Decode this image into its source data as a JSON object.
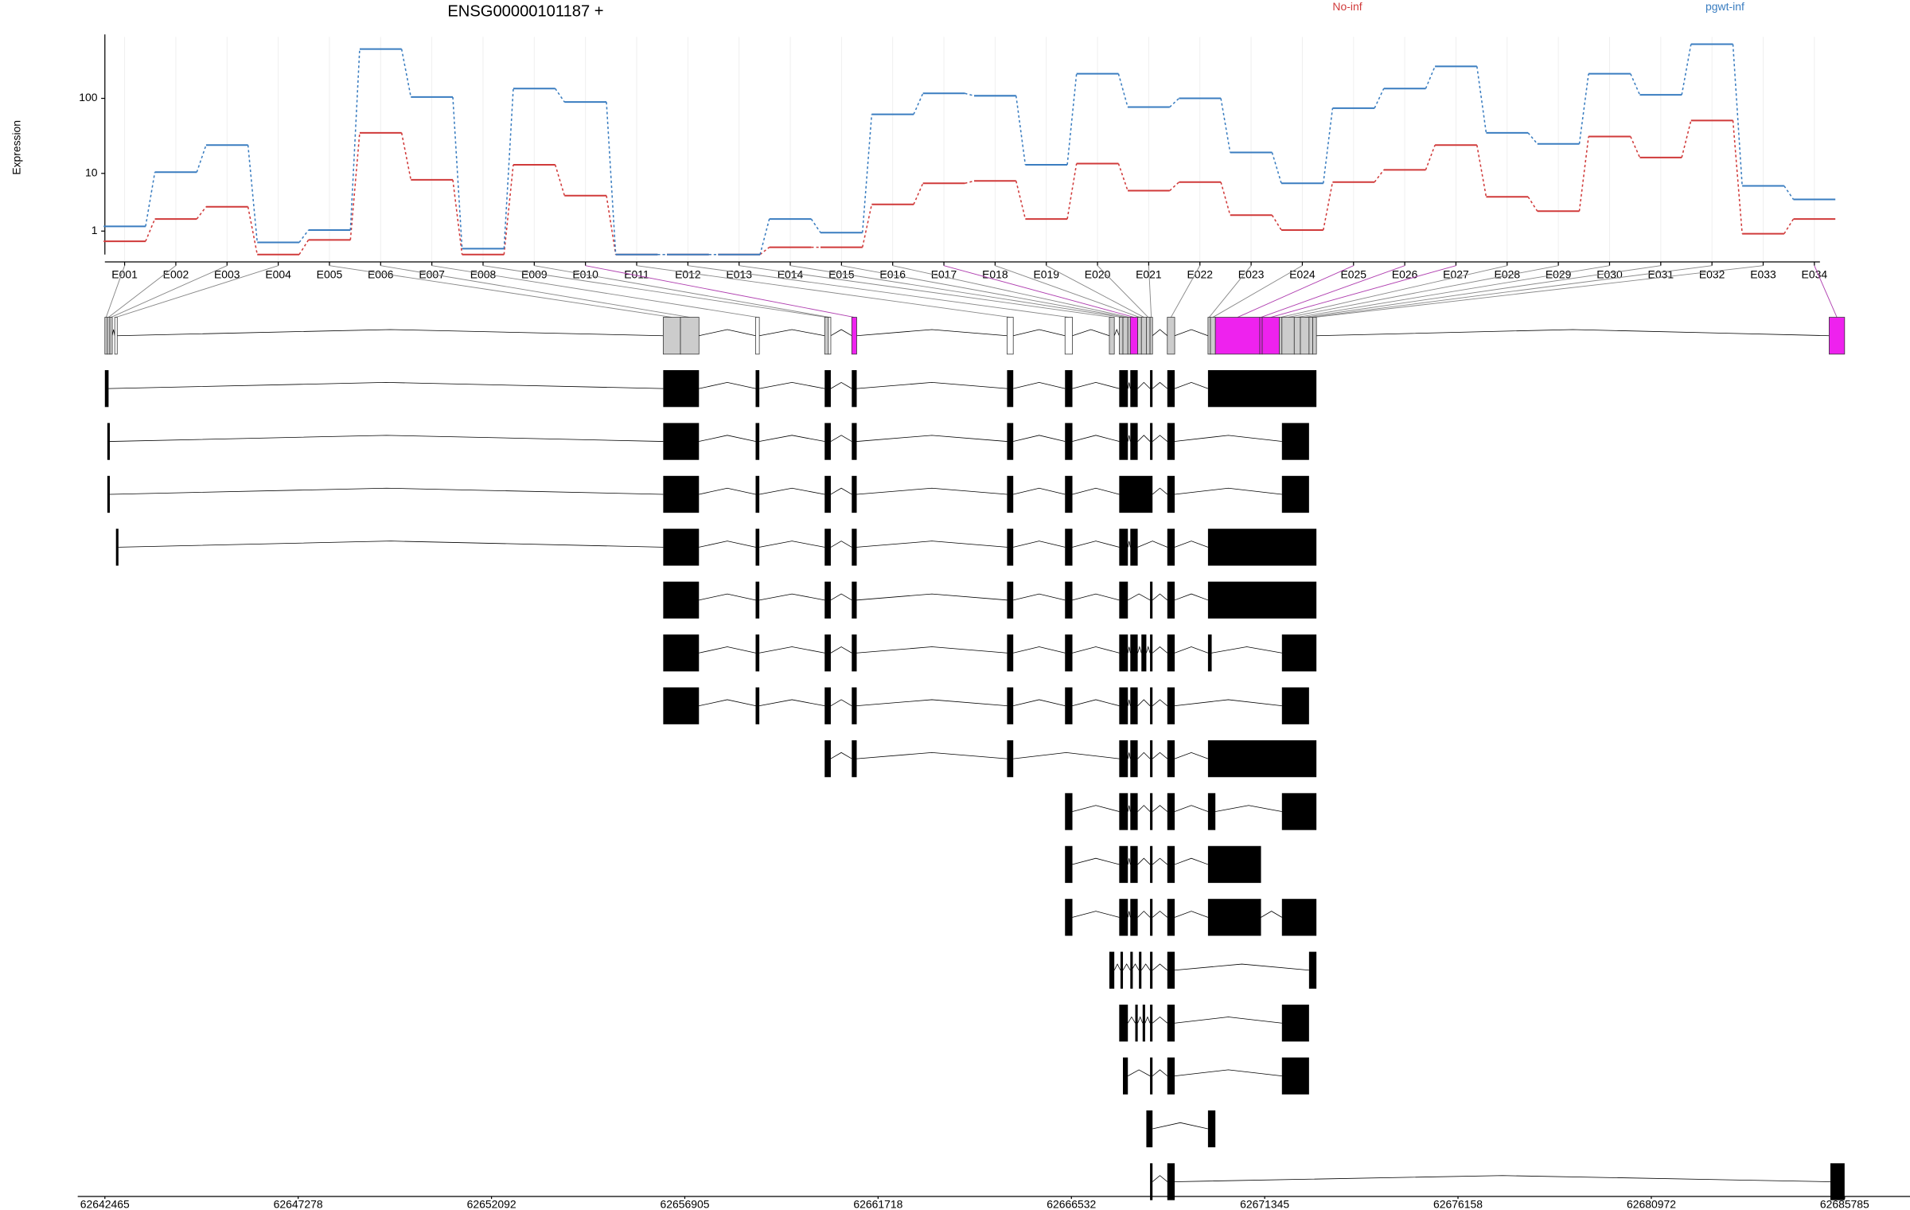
{
  "chart_data": {
    "type": "line",
    "title": "ENSG00000101187 +",
    "y_label": "Expression",
    "yscale": "log1p",
    "ylim": [
      0,
      620
    ],
    "yticks": [
      1,
      10,
      100
    ],
    "grid": true,
    "categories": [
      "E001",
      "E002",
      "E003",
      "E004",
      "E005",
      "E006",
      "E007",
      "E008",
      "E009",
      "E010",
      "E011",
      "E012",
      "E013",
      "E014",
      "E015",
      "E016",
      "E017",
      "E018",
      "E019",
      "E020",
      "E021",
      "E022",
      "E023",
      "E024",
      "E025",
      "E026",
      "E027",
      "E028",
      "E029",
      "E030",
      "E031",
      "E032",
      "E033",
      "E034"
    ],
    "series": [
      {
        "name": "No-inf",
        "color": "#d03a3a",
        "values": [
          0.48,
          1.86,
          3.1,
          0,
          0.54,
          35.5,
          8.1,
          0,
          13.2,
          4.7,
          0,
          0,
          0,
          0.24,
          0.24,
          3.4,
          7.2,
          7.8,
          1.86,
          13.7,
          5.6,
          7.5,
          2.2,
          1.06,
          7.5,
          11.2,
          24.4,
          4.5,
          2.6,
          31.7,
          16.6,
          51.5,
          0.85,
          1.86
        ]
      },
      {
        "name": "pgwt-inf",
        "color": "#3a7dc0",
        "values": [
          1.3,
          10.4,
          24.4,
          0.43,
          1.06,
          432,
          104,
          0.19,
          134,
          89.6,
          0,
          0,
          0,
          1.86,
          0.91,
          62,
          116,
          108,
          13.2,
          208,
          77,
          100,
          19.4,
          7.2,
          74.5,
          134,
          259,
          35.5,
          25.3,
          208,
          111,
          499,
          6.6,
          4.1
        ]
      }
    ],
    "xlim": [
      62642465,
      62685785
    ],
    "xticks": [
      62642465,
      62647278,
      62652092,
      62656905,
      62661718,
      62666532,
      62671345,
      62676158,
      62680972,
      62685785
    ],
    "exon_bins": [
      {
        "start": 62642465,
        "end": 62642526,
        "color": "#cccccc"
      },
      {
        "start": 62642526,
        "end": 62642588,
        "color": "#cccccc"
      },
      {
        "start": 62642588,
        "end": 62642649,
        "color": "#cccccc"
      },
      {
        "start": 62642711,
        "end": 62642772,
        "color": "#ffffff"
      },
      {
        "start": 62656368,
        "end": 62656797,
        "color": "#cccccc"
      },
      {
        "start": 62656797,
        "end": 62657258,
        "color": "#cccccc"
      },
      {
        "start": 62658669,
        "end": 62658761,
        "color": "#ffffff"
      },
      {
        "start": 62660388,
        "end": 62660480,
        "color": "#cccccc"
      },
      {
        "start": 62660480,
        "end": 62660541,
        "color": "#ffffff"
      },
      {
        "start": 62661063,
        "end": 62661186,
        "color": "#ee22ee"
      },
      {
        "start": 62664930,
        "end": 62665084,
        "color": "#ffffff"
      },
      {
        "start": 62666373,
        "end": 62666557,
        "color": "#ffffff"
      },
      {
        "start": 62667477,
        "end": 62667600,
        "color": "#cccccc"
      },
      {
        "start": 62667723,
        "end": 62667815,
        "color": "#cccccc"
      },
      {
        "start": 62667815,
        "end": 62667938,
        "color": "#cccccc"
      },
      {
        "start": 62667938,
        "end": 62667999,
        "color": "#cccccc"
      },
      {
        "start": 62667999,
        "end": 62668183,
        "color": "#ee22ee"
      },
      {
        "start": 62668183,
        "end": 62668275,
        "color": "#cccccc"
      },
      {
        "start": 62668275,
        "end": 62668398,
        "color": "#cccccc"
      },
      {
        "start": 62668398,
        "end": 62668490,
        "color": "#cccccc"
      },
      {
        "start": 62668490,
        "end": 62668552,
        "color": "#cccccc"
      },
      {
        "start": 62668920,
        "end": 62669104,
        "color": "#cccccc"
      },
      {
        "start": 62669933,
        "end": 62669994,
        "color": "#cccccc"
      },
      {
        "start": 62669994,
        "end": 62670117,
        "color": "#cccccc"
      },
      {
        "start": 62670117,
        "end": 62671222,
        "color": "#ee22ee"
      },
      {
        "start": 62671222,
        "end": 62671283,
        "color": "#ee22ee"
      },
      {
        "start": 62671283,
        "end": 62671713,
        "color": "#ee22ee"
      },
      {
        "start": 62671713,
        "end": 62671774,
        "color": "#cccccc"
      },
      {
        "start": 62671774,
        "end": 62672081,
        "color": "#cccccc"
      },
      {
        "start": 62672081,
        "end": 62672234,
        "color": "#cccccc"
      },
      {
        "start": 62672234,
        "end": 62672449,
        "color": "#cccccc"
      },
      {
        "start": 62672449,
        "end": 62672541,
        "color": "#cccccc"
      },
      {
        "start": 62672541,
        "end": 62672633,
        "color": "#cccccc"
      },
      {
        "start": 62685400,
        "end": 62685785,
        "color": "#ee22ee"
      }
    ],
    "transcripts": [
      [
        [
          62642465,
          62642557
        ],
        [
          62656368,
          62657258
        ],
        [
          62658669,
          62658761
        ],
        [
          62660388,
          62660541
        ],
        [
          62661063,
          62661186
        ],
        [
          62664930,
          62665084
        ],
        [
          62666373,
          62666557
        ],
        [
          62667723,
          62667938
        ],
        [
          62667999,
          62668183
        ],
        [
          62668490,
          62668552
        ],
        [
          62668920,
          62669104
        ],
        [
          62669933,
          62672633
        ]
      ],
      [
        [
          62642526,
          62642588
        ],
        [
          62656368,
          62657258
        ],
        [
          62658669,
          62658761
        ],
        [
          62660388,
          62660541
        ],
        [
          62661063,
          62661186
        ],
        [
          62664930,
          62665084
        ],
        [
          62666373,
          62666557
        ],
        [
          62667723,
          62667938
        ],
        [
          62667999,
          62668183
        ],
        [
          62668490,
          62668552
        ],
        [
          62668920,
          62669104
        ],
        [
          62671774,
          62672449
        ]
      ],
      [
        [
          62642526,
          62642588
        ],
        [
          62656368,
          62657258
        ],
        [
          62658669,
          62658761
        ],
        [
          62660388,
          62660541
        ],
        [
          62661063,
          62661186
        ],
        [
          62664930,
          62665084
        ],
        [
          62666373,
          62666557
        ],
        [
          62667723,
          62668552
        ],
        [
          62668920,
          62669104
        ],
        [
          62671774,
          62672449
        ]
      ],
      [
        [
          62642741,
          62642803
        ],
        [
          62656368,
          62657258
        ],
        [
          62658669,
          62658761
        ],
        [
          62660388,
          62660541
        ],
        [
          62661063,
          62661186
        ],
        [
          62664930,
          62665084
        ],
        [
          62666373,
          62666557
        ],
        [
          62667723,
          62667938
        ],
        [
          62667999,
          62668183
        ],
        [
          62668920,
          62669104
        ],
        [
          62669933,
          62672633
        ]
      ],
      [
        [
          62656368,
          62657258
        ],
        [
          62658669,
          62658761
        ],
        [
          62660388,
          62660541
        ],
        [
          62661063,
          62661186
        ],
        [
          62664930,
          62665084
        ],
        [
          62666373,
          62666557
        ],
        [
          62667723,
          62667938
        ],
        [
          62668490,
          62668552
        ],
        [
          62668920,
          62669104
        ],
        [
          62669933,
          62672633
        ]
      ],
      [
        [
          62656368,
          62657258
        ],
        [
          62658669,
          62658761
        ],
        [
          62660388,
          62660541
        ],
        [
          62661063,
          62661186
        ],
        [
          62664930,
          62665084
        ],
        [
          62666373,
          62666557
        ],
        [
          62667723,
          62667938
        ],
        [
          62667999,
          62668183
        ],
        [
          62668275,
          62668398
        ],
        [
          62668490,
          62668552
        ],
        [
          62668920,
          62669104
        ],
        [
          62669933,
          62670025
        ],
        [
          62671774,
          62672633
        ]
      ],
      [
        [
          62656368,
          62657258
        ],
        [
          62658669,
          62658761
        ],
        [
          62660388,
          62660541
        ],
        [
          62661063,
          62661186
        ],
        [
          62664930,
          62665084
        ],
        [
          62666373,
          62666557
        ],
        [
          62667723,
          62667938
        ],
        [
          62667999,
          62668183
        ],
        [
          62668490,
          62668552
        ],
        [
          62668920,
          62669104
        ],
        [
          62671774,
          62672449
        ]
      ],
      [
        [
          62660388,
          62660541
        ],
        [
          62661063,
          62661186
        ],
        [
          62664930,
          62665084
        ],
        [
          62667723,
          62667938
        ],
        [
          62667999,
          62668183
        ],
        [
          62668490,
          62668552
        ],
        [
          62668920,
          62669104
        ],
        [
          62669933,
          62672633
        ]
      ],
      [
        [
          62666373,
          62666557
        ],
        [
          62667723,
          62667938
        ],
        [
          62667999,
          62668183
        ],
        [
          62668490,
          62668552
        ],
        [
          62668920,
          62669104
        ],
        [
          62669933,
          62670117
        ],
        [
          62671774,
          62672633
        ]
      ],
      [
        [
          62666373,
          62666557
        ],
        [
          62667723,
          62667938
        ],
        [
          62667999,
          62668183
        ],
        [
          62668490,
          62668552
        ],
        [
          62668920,
          62669104
        ],
        [
          62669933,
          62671253
        ]
      ],
      [
        [
          62666373,
          62666557
        ],
        [
          62667723,
          62667938
        ],
        [
          62667999,
          62668183
        ],
        [
          62668490,
          62668552
        ],
        [
          62668920,
          62669104
        ],
        [
          62669933,
          62671253
        ],
        [
          62671774,
          62672633
        ]
      ],
      [
        [
          62667477,
          62667600
        ],
        [
          62667754,
          62667815
        ],
        [
          62667999,
          62668030
        ],
        [
          62668214,
          62668275
        ],
        [
          62668490,
          62668552
        ],
        [
          62668920,
          62669104
        ],
        [
          62672449,
          62672633
        ]
      ],
      [
        [
          62667723,
          62667938
        ],
        [
          62668122,
          62668183
        ],
        [
          62668306,
          62668367
        ],
        [
          62668490,
          62668552
        ],
        [
          62668920,
          62669104
        ],
        [
          62671774,
          62672449
        ]
      ],
      [
        [
          62667815,
          62667938
        ],
        [
          62668490,
          62668552
        ],
        [
          62668920,
          62669104
        ],
        [
          62671774,
          62672449
        ]
      ],
      [
        [
          62668398,
          62668552
        ],
        [
          62669933,
          62670117
        ]
      ],
      [
        [
          62668490,
          62668552
        ],
        [
          62668920,
          62669104
        ],
        [
          62685431,
          62685785
        ]
      ]
    ]
  }
}
